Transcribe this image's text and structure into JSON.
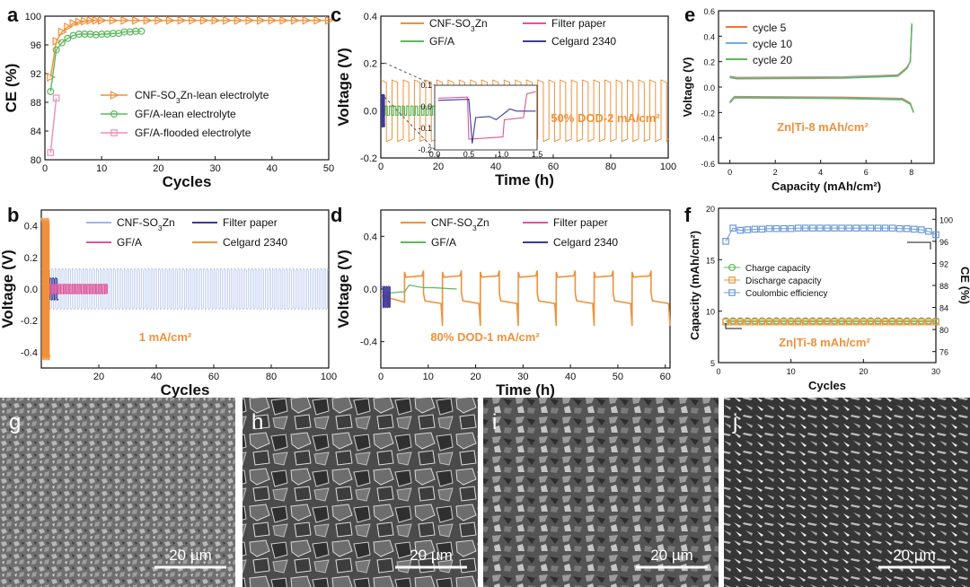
{
  "figure": {
    "panel_labels": [
      "a",
      "b",
      "c",
      "d",
      "e",
      "f",
      "g",
      "h",
      "i",
      "j"
    ],
    "sem_scale_label": "20 µm"
  },
  "colors": {
    "cnf": "#f0913a",
    "gfa": "#5cb85c",
    "flood": "#f08cb8",
    "filter": "#e0559a",
    "celgard": "#3a3a9a",
    "blue_light": "#9fb6e8",
    "cycle5": "#f2703a",
    "cycle10": "#6bb0d8",
    "cycle20": "#5cb85c",
    "ce_blue": "#6b9ad8",
    "annot": "#f0913a"
  },
  "chart_data": [
    {
      "id": "a",
      "type": "line",
      "xlabel": "Cycles",
      "ylabel": "CE (%)",
      "xlim": [
        0,
        50
      ],
      "ylim": [
        80,
        100
      ],
      "xticks": [
        "0",
        "10",
        "20",
        "30",
        "40",
        "50"
      ],
      "yticks": [
        "80",
        "84",
        "88",
        "92",
        "96",
        "100"
      ],
      "series": [
        {
          "name": "CNF-SO3Zn-lean electrolyte",
          "marker": "triangle",
          "color": "#f0913a",
          "x": [
            1,
            2,
            3,
            4,
            5,
            6,
            7,
            8,
            9,
            10,
            12,
            14,
            16,
            18,
            20,
            22,
            24,
            26,
            28,
            30,
            32,
            34,
            36,
            38,
            40,
            42,
            44,
            46,
            48,
            50
          ],
          "y": [
            91.5,
            96.5,
            97.8,
            98.5,
            99.0,
            99.2,
            99.3,
            99.4,
            99.4,
            99.4,
            99.4,
            99.4,
            99.4,
            99.4,
            99.4,
            99.4,
            99.4,
            99.4,
            99.4,
            99.4,
            99.4,
            99.4,
            99.4,
            99.4,
            99.4,
            99.4,
            99.4,
            99.4,
            99.4,
            99.4
          ]
        },
        {
          "name": "GF/A-lean electrolyte",
          "marker": "circle",
          "color": "#5cb85c",
          "x": [
            1,
            2,
            3,
            4,
            5,
            6,
            7,
            8,
            9,
            10,
            11,
            12,
            13,
            14,
            15,
            16,
            17
          ],
          "y": [
            89.5,
            95.3,
            96.3,
            96.9,
            97.3,
            97.5,
            97.5,
            97.5,
            97.4,
            97.5,
            97.5,
            97.6,
            97.6,
            97.8,
            97.8,
            97.9,
            97.9
          ]
        },
        {
          "name": "GF/A-flooded electrolyte",
          "marker": "square",
          "color": "#f08cb8",
          "x": [
            1,
            2
          ],
          "y": [
            81.0,
            88.6
          ]
        }
      ]
    },
    {
      "id": "b",
      "type": "line",
      "xlabel": "Cycles",
      "ylabel": "Voltage (V)",
      "xlim": [
        0,
        100
      ],
      "ylim": [
        -0.5,
        0.5
      ],
      "xticks": [
        "20",
        "40",
        "60",
        "80",
        "100"
      ],
      "yticks": [
        "-0.4",
        "-0.2",
        "0.0",
        "0.2",
        "0.4"
      ],
      "annotation": "1 mA/cm²",
      "series": [
        {
          "name": "CNF-SO3Zn",
          "color": "#9fb6e8",
          "end_x": 100,
          "amplitude": 0.13
        },
        {
          "name": "Filter paper",
          "color": "#3a3a9a",
          "end_x": 6,
          "amplitude": 0.07
        },
        {
          "name": "GF/A",
          "color": "#e0559a",
          "end_x": 23,
          "amplitude": 0.03
        },
        {
          "name": "Celgard 2340",
          "color": "#f0913a",
          "end_x": 3,
          "amplitude": 0.45
        }
      ]
    },
    {
      "id": "c",
      "type": "line",
      "xlabel": "Time (h)",
      "ylabel": "Voltage (V)",
      "xlim": [
        0,
        100
      ],
      "ylim": [
        -0.2,
        0.4
      ],
      "xticks": [
        "0",
        "20",
        "40",
        "60",
        "80",
        "100"
      ],
      "yticks": [
        "-0.2",
        "0.0",
        "0.2",
        "0.4"
      ],
      "annotation": "50% DOD-2 mA/cm²",
      "inset": {
        "xlim": [
          0,
          1.5
        ],
        "ylim": [
          -0.2,
          0.1
        ],
        "xticks": [
          "0.0",
          "0.5",
          "1.0",
          "1.5"
        ],
        "yticks": [
          "-0.2",
          "-0.1",
          "0.0",
          "0.1"
        ]
      },
      "series": [
        {
          "name": "CNF-SO3Zn",
          "color": "#f0913a",
          "end_x": 100,
          "amplitude": 0.13
        },
        {
          "name": "Filter paper",
          "color": "#e0559a",
          "end_x": 1.5,
          "amplitude": 0.06
        },
        {
          "name": "GF/A",
          "color": "#5cb85c",
          "end_x": 47,
          "amplitude": 0.02
        },
        {
          "name": "Celgard 2340",
          "color": "#3a3a9a",
          "end_x": 1.3,
          "amplitude": 0.07
        }
      ]
    },
    {
      "id": "d",
      "type": "line",
      "xlabel": "Time (h)",
      "ylabel": "Voltage (V)",
      "xlim": [
        0,
        61
      ],
      "ylim": [
        -0.6,
        0.6
      ],
      "xticks": [
        "0",
        "10",
        "20",
        "30",
        "40",
        "50",
        "60"
      ],
      "yticks": [
        "-0.4",
        "0.0",
        "0.4"
      ],
      "annotation": "80% DOD-1 mA/cm²",
      "series": [
        {
          "name": "CNF-SO3Zn",
          "color": "#f0913a",
          "end_x": 61,
          "period": 8,
          "amplitude": 0.12
        },
        {
          "name": "Filter paper",
          "color": "#e0559a",
          "end_x": 2,
          "amplitude": 0.06
        },
        {
          "name": "GF/A",
          "color": "#5cb85c",
          "end_x": 16,
          "amplitude": 0.02
        },
        {
          "name": "Celgard 2340",
          "color": "#3a3a9a",
          "end_x": 2,
          "amplitude": 0.08
        }
      ]
    },
    {
      "id": "e",
      "type": "line",
      "xlabel": "Capacity (mAh/cm²)",
      "ylabel": "Voltage (V)",
      "xlim": [
        -0.5,
        9
      ],
      "ylim": [
        -0.6,
        0.6
      ],
      "xticks": [
        "0",
        "2",
        "4",
        "6",
        "8"
      ],
      "yticks": [
        "-0.6",
        "-0.4",
        "-0.2",
        "0.0",
        "0.2",
        "0.4",
        "0.6"
      ],
      "annotation": "Zn|Ti-8 mAh/cm²",
      "series": [
        {
          "name": "cycle 5",
          "color": "#f2703a",
          "plateau_charge": 0.075,
          "plateau_discharge": -0.075
        },
        {
          "name": "cycle 10",
          "color": "#6bb0d8",
          "plateau_charge": 0.07,
          "plateau_discharge": -0.08
        },
        {
          "name": "cycle 20",
          "color": "#5cb85c",
          "plateau_charge": 0.065,
          "plateau_discharge": -0.085
        }
      ]
    },
    {
      "id": "f",
      "type": "scatter",
      "xlabel": "Cycles",
      "ylabel": "Capacity (mAh/cm²)",
      "y2label": "CE (%)",
      "xlim": [
        0,
        30
      ],
      "ylim": [
        5,
        20
      ],
      "y2lim": [
        74,
        102
      ],
      "xticks": [
        "0",
        "10",
        "20",
        "30"
      ],
      "yticks": [
        "5",
        "10",
        "15",
        "20"
      ],
      "y2ticks": [
        "76",
        "80",
        "84",
        "88",
        "92",
        "96",
        "100"
      ],
      "annotation": "Zn|Ti-8 mAh/cm²",
      "series": [
        {
          "name": "Charge capacity",
          "marker": "circle",
          "color": "#5cb85c",
          "axis": "left",
          "y_const": 9.05
        },
        {
          "name": "Discharge capacity",
          "marker": "square",
          "color": "#f0913a",
          "axis": "left",
          "y_const": 8.95
        },
        {
          "name": "Coulombic efficiency",
          "marker": "square",
          "color": "#6b9ad8",
          "axis": "right",
          "x": [
            1,
            2,
            3,
            4,
            5,
            6,
            7,
            8,
            9,
            10,
            11,
            12,
            13,
            14,
            15,
            16,
            17,
            18,
            19,
            20,
            21,
            22,
            23,
            24,
            25,
            26,
            27,
            28,
            29,
            30
          ],
          "y": [
            96.0,
            98.4,
            98.0,
            98.1,
            98.2,
            98.2,
            98.3,
            98.3,
            98.3,
            98.3,
            98.4,
            98.4,
            98.4,
            98.4,
            98.4,
            98.4,
            98.4,
            98.4,
            98.4,
            98.4,
            98.4,
            98.4,
            98.4,
            98.4,
            98.3,
            98.3,
            98.2,
            98.1,
            97.8,
            97.2
          ]
        }
      ]
    }
  ]
}
